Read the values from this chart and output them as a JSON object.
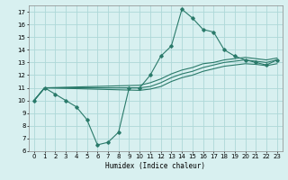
{
  "xlabel": "Humidex (Indice chaleur)",
  "bg_color": "#d8f0f0",
  "line_color": "#2a7a6a",
  "grid_color": "#aed8d8",
  "xlim": [
    -0.5,
    23.5
  ],
  "ylim": [
    6,
    17.5
  ],
  "xticks": [
    0,
    1,
    2,
    3,
    4,
    5,
    6,
    7,
    8,
    9,
    10,
    11,
    12,
    13,
    14,
    15,
    16,
    17,
    18,
    19,
    20,
    21,
    22,
    23
  ],
  "yticks": [
    6,
    7,
    8,
    9,
    10,
    11,
    12,
    13,
    14,
    15,
    16,
    17
  ],
  "line1_x": [
    0,
    1,
    2,
    3,
    4,
    5,
    6,
    7,
    8,
    9,
    10,
    11,
    12,
    13,
    14,
    15,
    16,
    17,
    18,
    19,
    20,
    21,
    22,
    23
  ],
  "line1_y": [
    10,
    11,
    10.5,
    10,
    9.5,
    8.5,
    6.5,
    6.7,
    7.5,
    11,
    11,
    12,
    13.5,
    14.3,
    17.2,
    16.5,
    15.6,
    15.4,
    14.0,
    13.5,
    13.2,
    13.0,
    12.8,
    13.2
  ],
  "line2_x": [
    0,
    1,
    10,
    11,
    12,
    13,
    14,
    15,
    16,
    17,
    18,
    19,
    20,
    21,
    22,
    23
  ],
  "line2_y": [
    10,
    11,
    11.2,
    11.4,
    11.7,
    12.1,
    12.4,
    12.6,
    12.9,
    13.0,
    13.2,
    13.3,
    13.4,
    13.3,
    13.2,
    13.35
  ],
  "line3_x": [
    0,
    1,
    10,
    11,
    12,
    13,
    14,
    15,
    16,
    17,
    18,
    19,
    20,
    21,
    22,
    23
  ],
  "line3_y": [
    10,
    11,
    11.0,
    11.1,
    11.4,
    11.8,
    12.1,
    12.3,
    12.6,
    12.8,
    13.0,
    13.1,
    13.2,
    13.1,
    13.0,
    13.2
  ],
  "line4_x": [
    0,
    1,
    10,
    11,
    12,
    13,
    14,
    15,
    16,
    17,
    18,
    19,
    20,
    21,
    22,
    23
  ],
  "line4_y": [
    10,
    11,
    10.8,
    10.9,
    11.1,
    11.5,
    11.8,
    12.0,
    12.3,
    12.5,
    12.7,
    12.8,
    12.9,
    12.85,
    12.75,
    12.9
  ]
}
